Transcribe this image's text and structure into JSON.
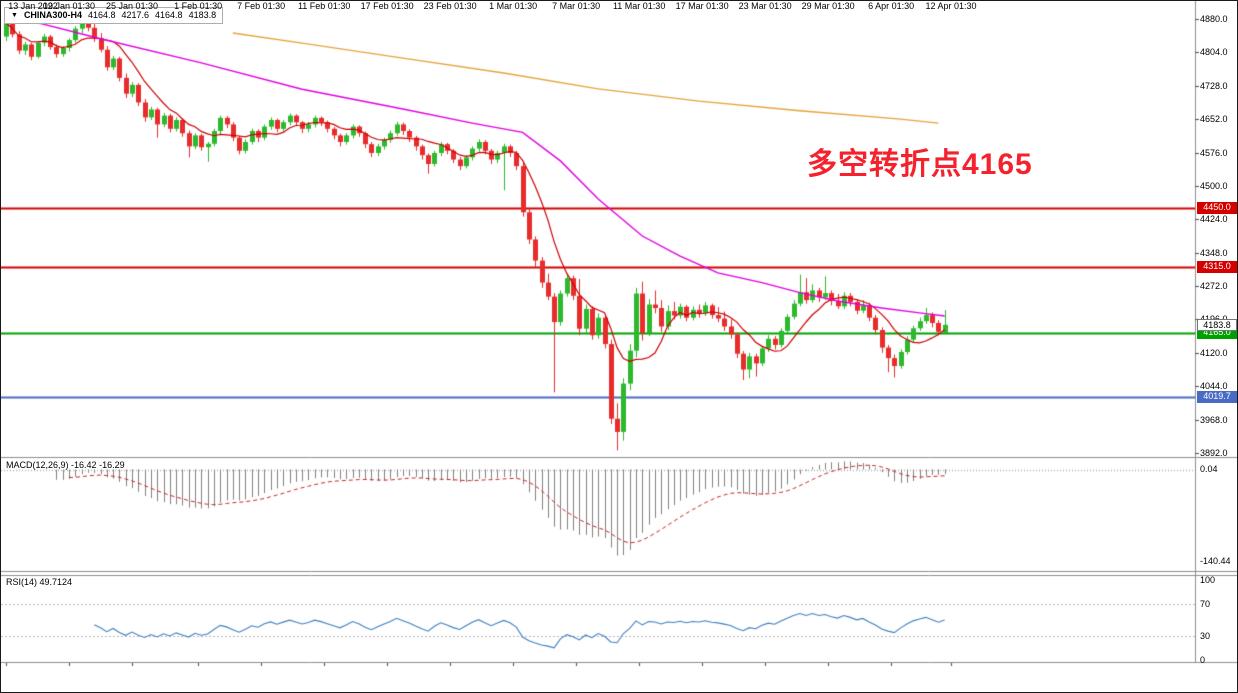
{
  "header": {
    "collapse_icon": "▼",
    "symbol": "CHINA300-H4",
    "open": "4164.8",
    "high": "4217.6",
    "low": "4164.8",
    "close": "4183.8"
  },
  "annotation": {
    "text": "多空转折点4165",
    "color": "#f5222d"
  },
  "chart_data": {
    "type": "candlestick",
    "title": "CHINA300-H4",
    "timeframe": "H4",
    "legend_position": "none",
    "grid": false,
    "price_axis": {
      "max": 4880,
      "min": 3892,
      "tick_step": 76,
      "ticks": [
        "4880.0",
        "4804.0",
        "4728.0",
        "4652.0",
        "4576.0",
        "4500.0",
        "4424.0",
        "4348.0",
        "4272.0",
        "4196.0",
        "4120.0",
        "4044.0",
        "3968.0",
        "3892.0"
      ]
    },
    "time_ticks": [
      {
        "i": 0,
        "label": "13 Jan 2022"
      },
      {
        "i": 10,
        "label": "19 Jan 01:30"
      },
      {
        "i": 20,
        "label": "25 Jan 01:30"
      },
      {
        "i": 30.5,
        "label": "1 Feb 01:30"
      },
      {
        "i": 40.5,
        "label": "7 Feb 01:30"
      },
      {
        "i": 50.5,
        "label": "11 Feb 01:30"
      },
      {
        "i": 60.5,
        "label": "17 Feb 01:30"
      },
      {
        "i": 70.5,
        "label": "23 Feb 01:30"
      },
      {
        "i": 80.5,
        "label": "1 Mar 01:30"
      },
      {
        "i": 90.5,
        "label": "7 Mar 01:30"
      },
      {
        "i": 100.5,
        "label": "11 Mar 01:30"
      },
      {
        "i": 110.5,
        "label": "17 Mar 01:30"
      },
      {
        "i": 120.5,
        "label": "23 Mar 01:30"
      },
      {
        "i": 130.5,
        "label": "29 Mar 01:30"
      },
      {
        "i": 140.5,
        "label": "6 Apr 01:30"
      },
      {
        "i": 150,
        "label": "12 Apr 01:30"
      }
    ],
    "candles_format": [
      "open",
      "high",
      "low",
      "close"
    ],
    "candles": [
      [
        4840,
        4886,
        4830,
        4872
      ],
      [
        4872,
        4878,
        4838,
        4845
      ],
      [
        4845,
        4852,
        4800,
        4808
      ],
      [
        4808,
        4828,
        4798,
        4822
      ],
      [
        4822,
        4826,
        4786,
        4794
      ],
      [
        4794,
        4830,
        4790,
        4826
      ],
      [
        4826,
        4846,
        4818,
        4840
      ],
      [
        4840,
        4844,
        4810,
        4816
      ],
      [
        4816,
        4822,
        4792,
        4800
      ],
      [
        4800,
        4818,
        4794,
        4814
      ],
      [
        4814,
        4836,
        4806,
        4832
      ],
      [
        4832,
        4864,
        4826,
        4858
      ],
      [
        4858,
        4884,
        4848,
        4874
      ],
      [
        4874,
        4880,
        4852,
        4860
      ],
      [
        4860,
        4872,
        4828,
        4836
      ],
      [
        4836,
        4848,
        4804,
        4810
      ],
      [
        4810,
        4818,
        4762,
        4770
      ],
      [
        4770,
        4796,
        4764,
        4790
      ],
      [
        4790,
        4794,
        4738,
        4746
      ],
      [
        4746,
        4756,
        4700,
        4710
      ],
      [
        4710,
        4736,
        4702,
        4730
      ],
      [
        4730,
        4734,
        4682,
        4690
      ],
      [
        4690,
        4698,
        4646,
        4656
      ],
      [
        4656,
        4680,
        4650,
        4674
      ],
      [
        4674,
        4678,
        4610,
        4640
      ],
      [
        4640,
        4666,
        4634,
        4660
      ],
      [
        4660,
        4664,
        4622,
        4630
      ],
      [
        4630,
        4656,
        4624,
        4650
      ],
      [
        4650,
        4654,
        4612,
        4620
      ],
      [
        4620,
        4626,
        4565,
        4590
      ],
      [
        4590,
        4620,
        4584,
        4615
      ],
      [
        4615,
        4619,
        4580,
        4588
      ],
      [
        4588,
        4600,
        4555,
        4596
      ],
      [
        4596,
        4630,
        4590,
        4625
      ],
      [
        4625,
        4660,
        4618,
        4655
      ],
      [
        4655,
        4659,
        4632,
        4640
      ],
      [
        4640,
        4645,
        4602,
        4610
      ],
      [
        4610,
        4614,
        4572,
        4580
      ],
      [
        4580,
        4606,
        4574,
        4600
      ],
      [
        4600,
        4630,
        4594,
        4625
      ],
      [
        4625,
        4629,
        4600,
        4610
      ],
      [
        4610,
        4640,
        4604,
        4635
      ],
      [
        4635,
        4656,
        4628,
        4650
      ],
      [
        4650,
        4653,
        4622,
        4630
      ],
      [
        4630,
        4650,
        4624,
        4645
      ],
      [
        4645,
        4665,
        4638,
        4660
      ],
      [
        4660,
        4663,
        4636,
        4645
      ],
      [
        4645,
        4648,
        4620,
        4630
      ],
      [
        4630,
        4646,
        4622,
        4640
      ],
      [
        4640,
        4660,
        4633,
        4655
      ],
      [
        4655,
        4658,
        4636,
        4645
      ],
      [
        4645,
        4649,
        4622,
        4630
      ],
      [
        4630,
        4634,
        4606,
        4615
      ],
      [
        4615,
        4619,
        4590,
        4600
      ],
      [
        4600,
        4620,
        4594,
        4615
      ],
      [
        4615,
        4640,
        4608,
        4635
      ],
      [
        4635,
        4638,
        4612,
        4620
      ],
      [
        4620,
        4624,
        4586,
        4595
      ],
      [
        4595,
        4600,
        4566,
        4575
      ],
      [
        4575,
        4596,
        4568,
        4590
      ],
      [
        4590,
        4610,
        4583,
        4605
      ],
      [
        4605,
        4626,
        4598,
        4620
      ],
      [
        4620,
        4646,
        4614,
        4640
      ],
      [
        4640,
        4644,
        4616,
        4625
      ],
      [
        4625,
        4629,
        4600,
        4610
      ],
      [
        4610,
        4614,
        4580,
        4590
      ],
      [
        4590,
        4594,
        4560,
        4570
      ],
      [
        4570,
        4574,
        4528,
        4550
      ],
      [
        4550,
        4580,
        4544,
        4575
      ],
      [
        4575,
        4600,
        4568,
        4595
      ],
      [
        4595,
        4598,
        4572,
        4580
      ],
      [
        4580,
        4584,
        4552,
        4560
      ],
      [
        4560,
        4566,
        4536,
        4545
      ],
      [
        4545,
        4570,
        4540,
        4565
      ],
      [
        4565,
        4590,
        4558,
        4585
      ],
      [
        4585,
        4606,
        4578,
        4600
      ],
      [
        4600,
        4604,
        4572,
        4580
      ],
      [
        4580,
        4584,
        4550,
        4560
      ],
      [
        4560,
        4580,
        4552,
        4575
      ],
      [
        4575,
        4596,
        4490,
        4590
      ],
      [
        4590,
        4594,
        4566,
        4575
      ],
      [
        4575,
        4580,
        4536,
        4545
      ],
      [
        4545,
        4552,
        4430,
        4440
      ],
      [
        4440,
        4448,
        4368,
        4378
      ],
      [
        4378,
        4385,
        4315,
        4330
      ],
      [
        4330,
        4338,
        4268,
        4280
      ],
      [
        4280,
        4300,
        4240,
        4248
      ],
      [
        4248,
        4256,
        4030,
        4190
      ],
      [
        4190,
        4262,
        4182,
        4255
      ],
      [
        4255,
        4300,
        4248,
        4290
      ],
      [
        4290,
        4296,
        4240,
        4250
      ],
      [
        4250,
        4288,
        4160,
        4175
      ],
      [
        4175,
        4230,
        4165,
        4220
      ],
      [
        4220,
        4226,
        4150,
        4160
      ],
      [
        4160,
        4210,
        4152,
        4200
      ],
      [
        4200,
        4206,
        4130,
        4140
      ],
      [
        4140,
        4150,
        3958,
        3970
      ],
      [
        3970,
        4005,
        3898,
        3940
      ],
      [
        3940,
        4062,
        3920,
        4050
      ],
      [
        4050,
        4140,
        4035,
        4125
      ],
      [
        4125,
        4268,
        4110,
        4255
      ],
      [
        4255,
        4282,
        4148,
        4165
      ],
      [
        4165,
        4242,
        4158,
        4230
      ],
      [
        4230,
        4262,
        4210,
        4222
      ],
      [
        4222,
        4240,
        4168,
        4180
      ],
      [
        4180,
        4228,
        4172,
        4215
      ],
      [
        4215,
        4236,
        4196,
        4205
      ],
      [
        4205,
        4232,
        4198,
        4225
      ],
      [
        4225,
        4229,
        4192,
        4200
      ],
      [
        4200,
        4226,
        4194,
        4218
      ],
      [
        4218,
        4230,
        4200,
        4210
      ],
      [
        4210,
        4236,
        4204,
        4228
      ],
      [
        4228,
        4232,
        4198,
        4206
      ],
      [
        4206,
        4224,
        4190,
        4198
      ],
      [
        4198,
        4214,
        4170,
        4180
      ],
      [
        4180,
        4196,
        4152,
        4162
      ],
      [
        4162,
        4166,
        4108,
        4118
      ],
      [
        4118,
        4124,
        4058,
        4082
      ],
      [
        4082,
        4120,
        4062,
        4112
      ],
      [
        4112,
        4118,
        4066,
        4096
      ],
      [
        4096,
        4136,
        4090,
        4130
      ],
      [
        4130,
        4160,
        4122,
        4152
      ],
      [
        4152,
        4158,
        4128,
        4138
      ],
      [
        4138,
        4176,
        4132,
        4170
      ],
      [
        4170,
        4208,
        4164,
        4202
      ],
      [
        4202,
        4240,
        4196,
        4232
      ],
      [
        4232,
        4298,
        4226,
        4258
      ],
      [
        4258,
        4290,
        4232,
        4240
      ],
      [
        4240,
        4276,
        4234,
        4262
      ],
      [
        4262,
        4268,
        4236,
        4246
      ],
      [
        4246,
        4294,
        4240,
        4256
      ],
      [
        4256,
        4262,
        4228,
        4238
      ],
      [
        4238,
        4254,
        4220,
        4226
      ],
      [
        4226,
        4258,
        4220,
        4250
      ],
      [
        4250,
        4256,
        4226,
        4236
      ],
      [
        4236,
        4242,
        4208,
        4216
      ],
      [
        4216,
        4240,
        4210,
        4228
      ],
      [
        4228,
        4234,
        4192,
        4200
      ],
      [
        4200,
        4206,
        4162,
        4172
      ],
      [
        4172,
        4178,
        4120,
        4132
      ],
      [
        4132,
        4138,
        4076,
        4108
      ],
      [
        4108,
        4116,
        4064,
        4090
      ],
      [
        4090,
        4128,
        4084,
        4122
      ],
      [
        4122,
        4158,
        4116,
        4150
      ],
      [
        4150,
        4182,
        4144,
        4176
      ],
      [
        4176,
        4200,
        4170,
        4192
      ],
      [
        4192,
        4222,
        4186,
        4206
      ],
      [
        4206,
        4212,
        4178,
        4188
      ],
      [
        4188,
        4194,
        4160,
        4168
      ],
      [
        4164.8,
        4217.6,
        4164.8,
        4183.8
      ]
    ],
    "candle_colors": {
      "up": "#2eb82e",
      "down": "#e82c2c"
    },
    "overlays": {
      "ma_red": {
        "name": "fast MA",
        "color": "#cc0000",
        "period": 8,
        "source": "sma_of_closes"
      },
      "ma_magenta": {
        "name": "medium MA",
        "color": "#e000e0",
        "points": [
          [
            0,
            4890
          ],
          [
            15,
            4835
          ],
          [
            31,
            4780
          ],
          [
            47,
            4720
          ],
          [
            63,
            4675
          ],
          [
            74,
            4643
          ],
          [
            82,
            4622
          ],
          [
            88,
            4557
          ],
          [
            94,
            4470
          ],
          [
            101,
            4386
          ],
          [
            107,
            4340
          ],
          [
            113,
            4302
          ],
          [
            120,
            4280
          ],
          [
            126,
            4257
          ],
          [
            132,
            4238
          ],
          [
            139,
            4222
          ],
          [
            145,
            4211
          ],
          [
            149,
            4204
          ]
        ]
      },
      "ma_orange": {
        "name": "slow MA",
        "color": "#e6a23c",
        "points": [
          [
            36,
            4848
          ],
          [
            47,
            4825
          ],
          [
            63,
            4791
          ],
          [
            79,
            4757
          ],
          [
            94,
            4721
          ],
          [
            110,
            4693
          ],
          [
            126,
            4671
          ],
          [
            142,
            4652
          ],
          [
            148,
            4643
          ]
        ]
      }
    },
    "hlines": [
      {
        "price": 4450.0,
        "label": "4450.0",
        "color": "#d40000"
      },
      {
        "price": 4315.0,
        "label": "4315.0",
        "color": "#d40000"
      },
      {
        "price": 4165.0,
        "label": "4165.0",
        "color": "#00a000"
      },
      {
        "price": 4019.7,
        "label": "4019.7",
        "color": "#4a6bc4"
      }
    ],
    "current_price": {
      "price": 4183.8,
      "label": "4183.8"
    },
    "macd": {
      "label": "MACD(12,26,9)",
      "main_value": "-16.42",
      "signal_value": "-16.29",
      "fast": 12,
      "slow": 26,
      "signal": 9,
      "scale_labels": [
        {
          "label": "0.04",
          "value": 0.04
        },
        {
          "label": "-140.44",
          "value": -140.44
        }
      ],
      "histogram_color": "#808080",
      "signal_color": "#cc2222"
    },
    "rsi": {
      "label": "RSI(14)",
      "value": "49.7124",
      "period": 14,
      "levels": [
        70,
        30
      ],
      "scale_labels": [
        {
          "label": "100",
          "value": 100
        },
        {
          "label": "70",
          "value": 70
        },
        {
          "label": "30",
          "value": 30
        },
        {
          "label": "0",
          "value": 0
        }
      ],
      "line_color": "#3e7fc1"
    }
  }
}
